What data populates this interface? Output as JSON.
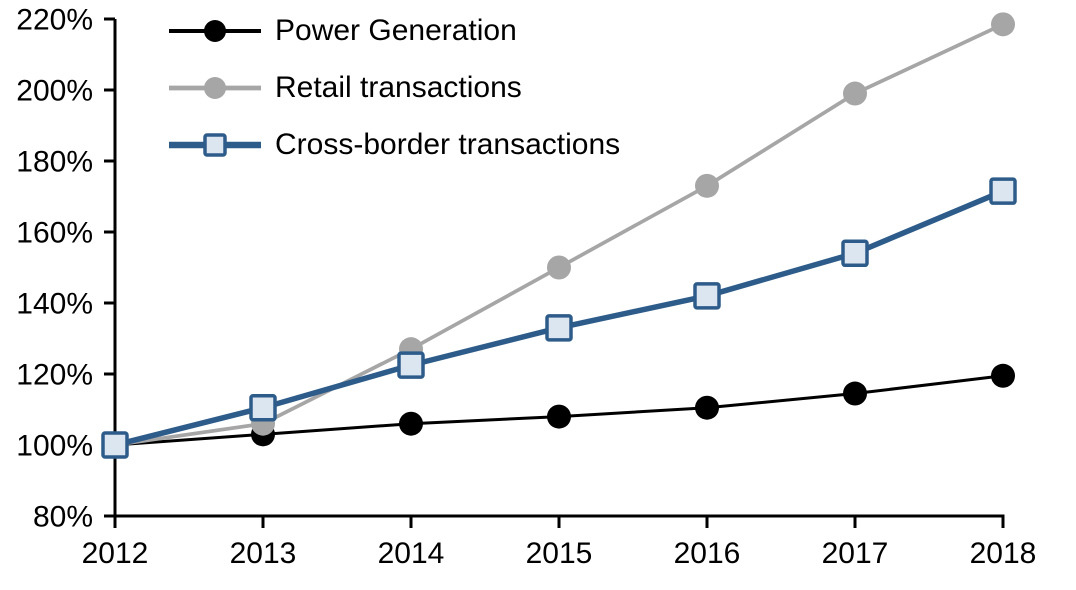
{
  "chart_data": {
    "type": "line",
    "title": "",
    "xlabel": "",
    "ylabel": "",
    "x": [
      2012,
      2013,
      2014,
      2015,
      2016,
      2017,
      2018
    ],
    "xtick_labels": [
      "2012",
      "2013",
      "2014",
      "2015",
      "2016",
      "2017",
      "2018"
    ],
    "ylim": [
      80,
      220
    ],
    "yticks": [
      80,
      100,
      120,
      140,
      160,
      180,
      200,
      220
    ],
    "ytick_labels": [
      "80%",
      "100%",
      "120%",
      "140%",
      "160%",
      "180%",
      "200%",
      "220%"
    ],
    "grid": false,
    "legend_position": "top-left-inside",
    "series": [
      {
        "name": "Power Generation",
        "marker": "circle",
        "color": "#000000",
        "marker_fill": "#000000",
        "line_width": 3,
        "values": [
          100,
          103,
          106,
          108,
          110.5,
          114.5,
          119.5
        ]
      },
      {
        "name": "Retail transactions",
        "marker": "circle",
        "color": "#a6a6a6",
        "marker_fill": "#a6a6a6",
        "line_width": 3.7,
        "values": [
          100,
          106,
          127,
          150,
          173,
          199,
          218.5
        ]
      },
      {
        "name": "Cross-border transactions",
        "marker": "square",
        "color": "#2e5c8a",
        "marker_fill": "#dce6f1",
        "line_width": 5.5,
        "values": [
          100,
          110.5,
          122.5,
          133,
          142,
          154,
          171.5
        ]
      }
    ],
    "axis_color": "#000000"
  }
}
